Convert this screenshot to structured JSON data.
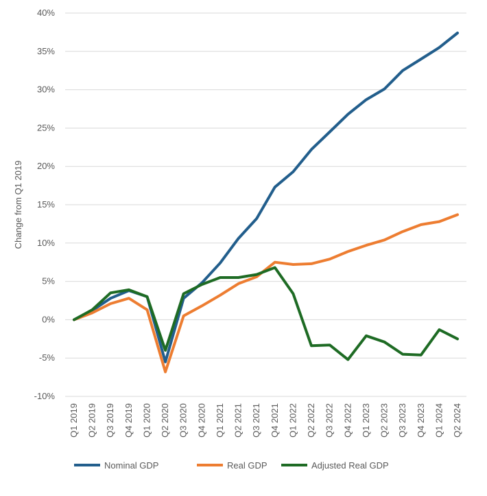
{
  "chart_data": {
    "type": "line",
    "title": "",
    "xlabel": "",
    "ylabel": "Change from Q1 2019",
    "ylim": [
      -10,
      40
    ],
    "yticks": [
      -10,
      -5,
      0,
      5,
      10,
      15,
      20,
      25,
      30,
      35,
      40
    ],
    "ytick_labels": [
      "-10%",
      "-5%",
      "0%",
      "5%",
      "10%",
      "15%",
      "20%",
      "25%",
      "30%",
      "35%",
      "40%"
    ],
    "grid": true,
    "legend_position": "bottom",
    "categories": [
      "Q1 2019",
      "Q2 2019",
      "Q3 2019",
      "Q4 2019",
      "Q1 2020",
      "Q2 2020",
      "Q3 2020",
      "Q4 2020",
      "Q1 2021",
      "Q2 2021",
      "Q3 2021",
      "Q4 2021",
      "Q1 2022",
      "Q2 2022",
      "Q3 2022",
      "Q4 2022",
      "Q1 2023",
      "Q2 2023",
      "Q3 2023",
      "Q4 2023",
      "Q1 2024",
      "Q2 2024"
    ],
    "series": [
      {
        "name": "Nominal GDP",
        "color": "#225E8C",
        "values": [
          0,
          1.2,
          2.8,
          3.8,
          3.0,
          -5.5,
          2.8,
          4.8,
          7.4,
          10.6,
          13.2,
          17.3,
          19.3,
          22.2,
          24.5,
          26.8,
          28.7,
          30.1,
          32.5,
          34.0,
          35.5,
          37.4
        ]
      },
      {
        "name": "Real GDP",
        "color": "#ED7D31",
        "values": [
          0,
          0.9,
          2.1,
          2.8,
          1.3,
          -6.8,
          0.5,
          1.8,
          3.2,
          4.7,
          5.6,
          7.5,
          7.2,
          7.3,
          7.9,
          8.9,
          9.7,
          10.4,
          11.5,
          12.4,
          12.8,
          13.7
        ]
      },
      {
        "name": "Adjusted Real GDP",
        "color": "#1E6B24",
        "values": [
          0,
          1.3,
          3.5,
          3.9,
          3.0,
          -4.0,
          3.4,
          4.6,
          5.5,
          5.5,
          5.9,
          6.8,
          3.4,
          -3.4,
          -3.3,
          -5.2,
          -2.1,
          -2.9,
          -4.5,
          -4.6,
          -1.3,
          -2.5
        ]
      }
    ]
  }
}
